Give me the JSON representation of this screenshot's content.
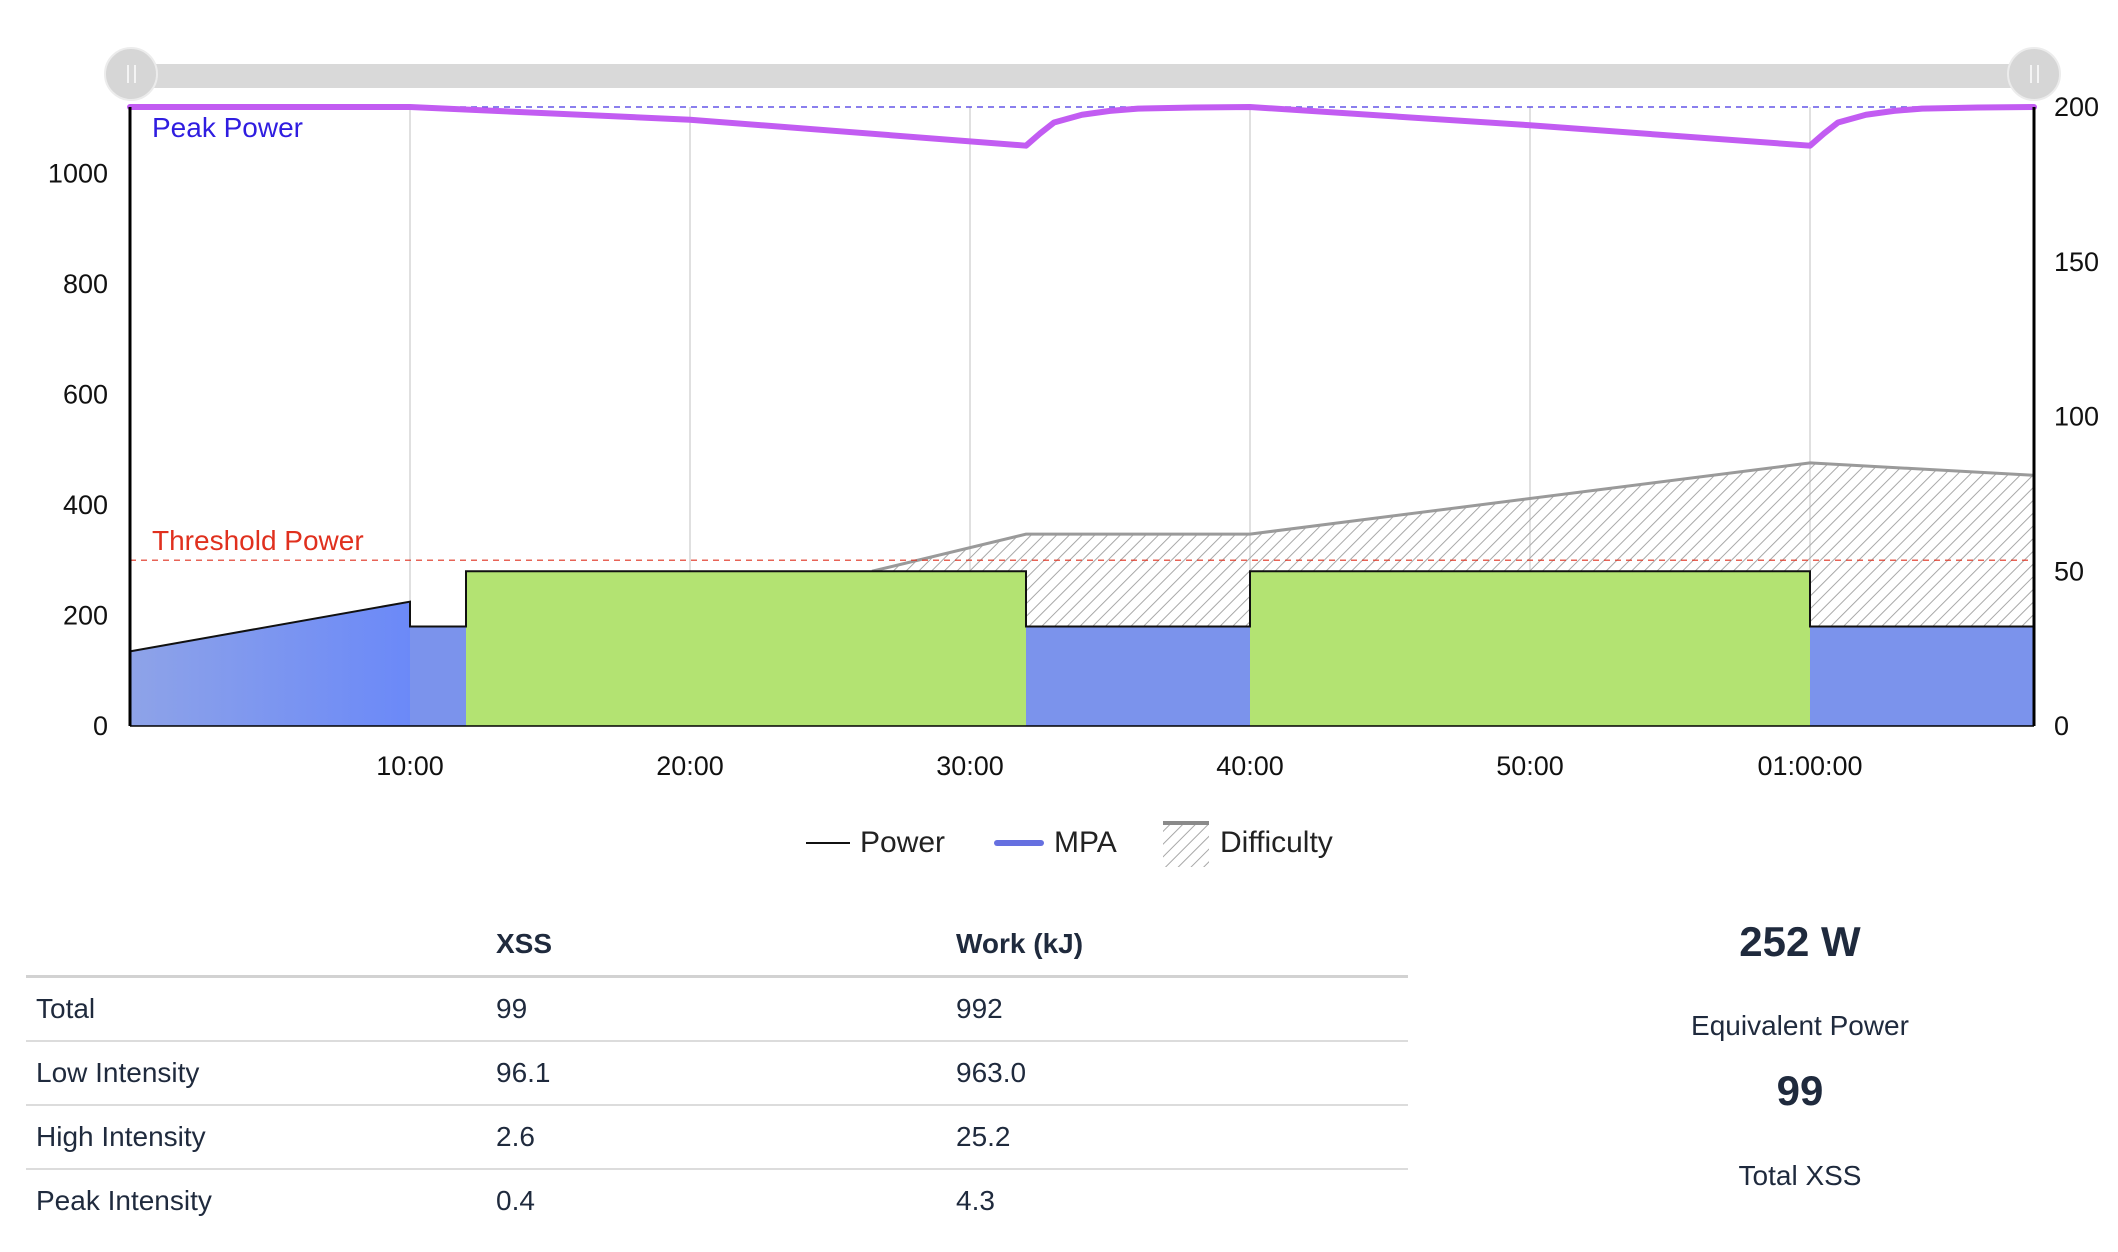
{
  "slider": {
    "left_handle_icon": "grip-icon",
    "right_handle_icon": "grip-icon"
  },
  "colors": {
    "power_line": "#111111",
    "mpa": "#c25cf2",
    "mpa_legend": "#6670e0",
    "peak_power": "#2f1de0",
    "threshold_power": "#e0301e",
    "low_intensity_fill": "#7b93ec",
    "high_intensity_fill": "#b3e372",
    "ramp_fill": "#6f8cf6",
    "difficulty": "#9a9a9a"
  },
  "chart_data": {
    "type": "area",
    "x_unit": "minutes",
    "xlim": [
      0,
      68
    ],
    "x_ticks": [
      10,
      20,
      30,
      40,
      50,
      60
    ],
    "x_tick_labels": [
      "10:00",
      "20:00",
      "30:00",
      "40:00",
      "50:00",
      "01:00:00"
    ],
    "ylim_left": [
      0,
      1120
    ],
    "y_left_ticks": [
      0,
      200,
      400,
      600,
      800,
      1000
    ],
    "ylim_right": [
      0,
      200
    ],
    "y_right_ticks": [
      0,
      50,
      100,
      150,
      200
    ],
    "grid_x": true,
    "reference_lines": [
      {
        "label": "Peak Power",
        "value": 1120,
        "axis": "left"
      },
      {
        "label": "Threshold Power",
        "value": 300,
        "axis": "left"
      }
    ],
    "power_segments": [
      {
        "start": 0,
        "end": 10,
        "watts_start": 135,
        "watts_end": 225,
        "zone": "ramp"
      },
      {
        "start": 10,
        "end": 12,
        "watts": 180,
        "zone": "low"
      },
      {
        "start": 12,
        "end": 32,
        "watts": 280,
        "zone": "high"
      },
      {
        "start": 32,
        "end": 40,
        "watts": 180,
        "zone": "low"
      },
      {
        "start": 40,
        "end": 60,
        "watts": 280,
        "zone": "high"
      },
      {
        "start": 60,
        "end": 68,
        "watts": 180,
        "zone": "low"
      }
    ],
    "mpa": {
      "axis": "left",
      "x": [
        0,
        10,
        20,
        32,
        32.5,
        33,
        34,
        35,
        36,
        38,
        40,
        50,
        60,
        60.5,
        61,
        62,
        63,
        64,
        66,
        68
      ],
      "y": [
        1120,
        1120,
        1097,
        1050,
        1072,
        1092,
        1106,
        1113,
        1117,
        1119,
        1120,
        1087,
        1050,
        1072,
        1092,
        1106,
        1113,
        1117,
        1119,
        1120
      ]
    },
    "difficulty": {
      "axis": "right",
      "x": [
        26.5,
        32,
        40,
        60,
        68
      ],
      "y": [
        50,
        62,
        62,
        85,
        81
      ]
    },
    "legend": [
      {
        "label": "Power",
        "icon": "line-swatch-icon"
      },
      {
        "label": "MPA",
        "icon": "thick-line-swatch-icon"
      },
      {
        "label": "Difficulty",
        "icon": "hatched-swatch-icon"
      }
    ],
    "legend_position": "bottom"
  },
  "table": {
    "headers": [
      "",
      "XSS",
      "Work (kJ)"
    ],
    "rows": [
      [
        "Total",
        "99",
        "992"
      ],
      [
        "Low Intensity",
        "96.1",
        "963.0"
      ],
      [
        "High Intensity",
        "2.6",
        "25.2"
      ],
      [
        "Peak Intensity",
        "0.4",
        "4.3"
      ]
    ]
  },
  "summary": {
    "equivalent_power_value": "252 W",
    "equivalent_power_label": "Equivalent Power",
    "total_xss_value": "99",
    "total_xss_label": "Total XSS"
  }
}
